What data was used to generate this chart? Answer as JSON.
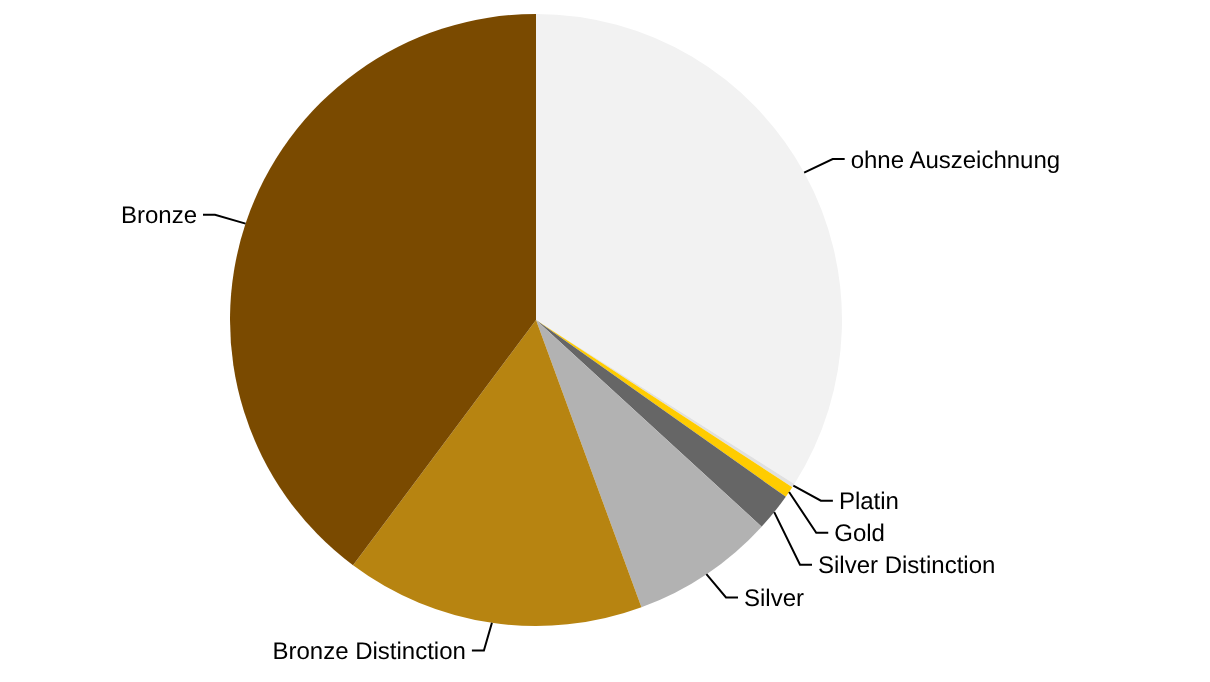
{
  "chart_data": {
    "type": "pie",
    "categories": [
      "ohne Auszeichnung",
      "Platin",
      "Gold",
      "Silver Distinction",
      "Silver",
      "Bronze Distinction",
      "Bronze"
    ],
    "values": [
      34.0,
      0.2,
      0.6,
      2.0,
      7.6,
      15.8,
      39.8
    ],
    "colors": [
      "#f2f2f2",
      "#e0e0e0",
      "#ffcc00",
      "#666666",
      "#b2b2b2",
      "#b78411",
      "#7a4a00"
    ]
  }
}
